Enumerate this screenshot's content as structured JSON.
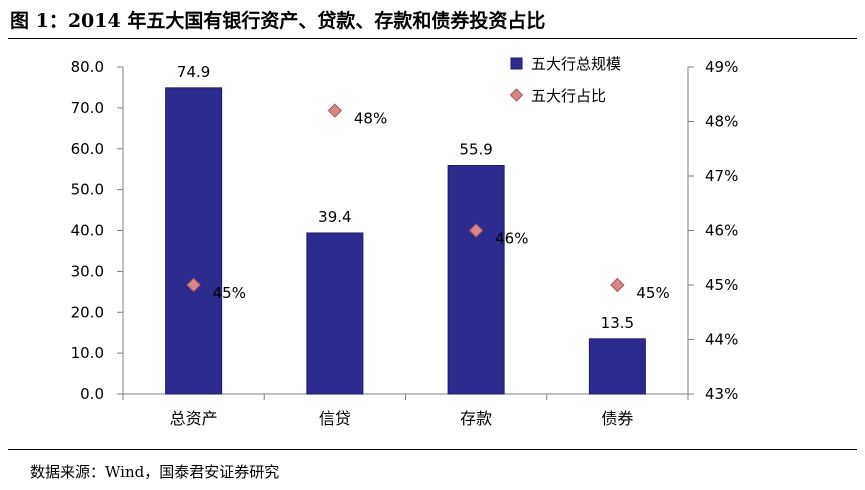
{
  "figure": {
    "title": "图 1：2014 年五大国有银行资产、贷款、存款和债券投资占比",
    "source": "数据来源：Wind，国泰君安证券研究"
  },
  "chart_data": {
    "type": "bar",
    "categories": [
      "总资产",
      "信贷",
      "存款",
      "债券"
    ],
    "series": [
      {
        "name": "五大行总规模",
        "kind": "bar",
        "axis": "left",
        "values": [
          74.9,
          39.4,
          55.9,
          13.5
        ],
        "labels": [
          "74.9",
          "39.4",
          "55.9",
          "13.5"
        ],
        "color": "#2e2b8f"
      },
      {
        "name": "五大行占比",
        "kind": "marker",
        "axis": "right",
        "values": [
          45,
          48.2,
          46,
          45
        ],
        "labels": [
          "45%",
          "48%",
          "46%",
          "45%"
        ],
        "color": "#d4888a"
      }
    ],
    "y_left": {
      "ylim": [
        0,
        80
      ],
      "ticks": [
        "0.0",
        "10.0",
        "20.0",
        "30.0",
        "40.0",
        "50.0",
        "60.0",
        "70.0",
        "80.0"
      ]
    },
    "y_right": {
      "ylim": [
        43,
        49
      ],
      "unit": "%",
      "ticks": [
        "43%",
        "44%",
        "45%",
        "46%",
        "47%",
        "48%",
        "49%"
      ]
    },
    "grid": false,
    "legend_position": "top-right"
  }
}
